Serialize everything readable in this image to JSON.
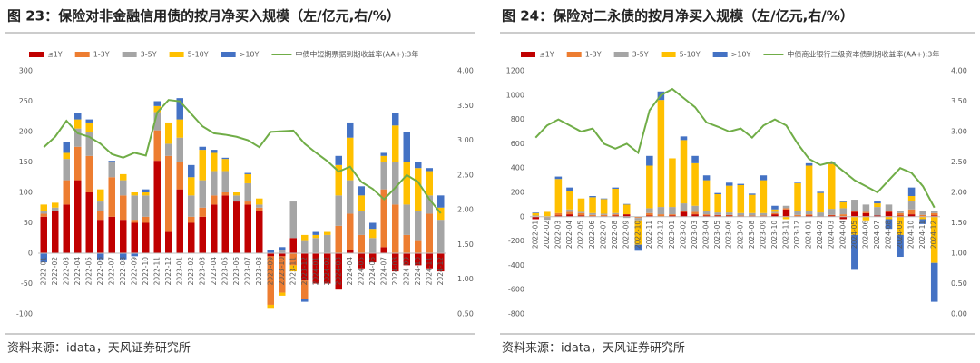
{
  "chart_data": [
    {
      "type": "bar",
      "stacked": true,
      "title": "图 23：保险对非金融信用债的按月净买入规模（左/亿元,右/%）",
      "note": "资料来源：idata，天风证券研究所",
      "categories": [
        "2022-01",
        "2022-02",
        "2022-03",
        "2022-04",
        "2022-05",
        "2022-06",
        "2022-07",
        "2022-08",
        "2022-09",
        "2022-10",
        "2022-11",
        "2022-12",
        "2023-01",
        "2023-02",
        "2023-03",
        "2023-04",
        "2023-05",
        "2023-06",
        "2023-07",
        "2023-08",
        "2023-09",
        "2023-10",
        "2023-11",
        "2023-12",
        "2024-01",
        "2024-02",
        "2024-03",
        "2024-04",
        "2024-05",
        "2024-06",
        "2024-07",
        "2024-08",
        "2024-09",
        "2024-10",
        "2024-11",
        "2024-12"
      ],
      "series": [
        {
          "name": "≤1Y",
          "color": "#c00000",
          "values": [
            60,
            70,
            80,
            120,
            100,
            55,
            60,
            55,
            50,
            50,
            152,
            35,
            105,
            50,
            60,
            80,
            95,
            85,
            80,
            70,
            -5,
            -5,
            25,
            -45,
            -50,
            -50,
            -60,
            5,
            -25,
            -15,
            10,
            -30,
            -20,
            -20,
            -25,
            -30
          ]
        },
        {
          "name": "1-3Y",
          "color": "#ed7d31",
          "values": [
            5,
            0,
            40,
            55,
            60,
            15,
            65,
            40,
            5,
            10,
            50,
            125,
            45,
            10,
            15,
            15,
            5,
            0,
            5,
            5,
            -80,
            -60,
            -20,
            -30,
            0,
            0,
            45,
            60,
            30,
            0,
            95,
            80,
            30,
            20,
            65,
            0
          ]
        },
        {
          "name": "3-5Y",
          "color": "#a5a5a5",
          "values": [
            5,
            5,
            35,
            30,
            40,
            15,
            25,
            25,
            40,
            35,
            30,
            20,
            40,
            35,
            45,
            40,
            35,
            10,
            30,
            5,
            0,
            5,
            60,
            20,
            25,
            30,
            50,
            55,
            40,
            25,
            45,
            70,
            50,
            50,
            30,
            55
          ]
        },
        {
          "name": "5-10Y",
          "color": "#ffc000",
          "values": [
            10,
            8,
            10,
            15,
            15,
            20,
            0,
            10,
            5,
            5,
            10,
            35,
            30,
            30,
            50,
            30,
            20,
            5,
            15,
            10,
            -5,
            -5,
            -10,
            10,
            5,
            5,
            50,
            70,
            25,
            15,
            10,
            60,
            70,
            70,
            40,
            20
          ]
        },
        {
          "name": ">10Y",
          "color": "#4472c4",
          "values": [
            -15,
            0,
            18,
            10,
            5,
            -10,
            2,
            -10,
            -5,
            5,
            8,
            0,
            35,
            20,
            5,
            5,
            2,
            0,
            2,
            0,
            5,
            5,
            0,
            -5,
            5,
            0,
            15,
            25,
            15,
            10,
            5,
            20,
            50,
            10,
            5,
            20
          ]
        },
        {
          "name": "中债中短期票据到期收益率(AA+):3年",
          "type": "line",
          "axis": "y2",
          "color": "#70ad47",
          "values": [
            2.9,
            3.05,
            3.28,
            3.1,
            3.05,
            2.95,
            2.8,
            2.75,
            2.82,
            2.78,
            3.4,
            3.58,
            3.56,
            3.38,
            3.2,
            3.1,
            3.08,
            3.05,
            3.0,
            2.9,
            3.12,
            3.13,
            3.14,
            2.95,
            2.82,
            2.7,
            2.55,
            2.62,
            2.4,
            2.3,
            2.15,
            2.32,
            2.5,
            2.4,
            2.15,
            1.95
          ]
        }
      ],
      "ylim": [
        -100,
        300
      ],
      "yticks": [
        -100,
        -50,
        0,
        50,
        100,
        150,
        200,
        250,
        300
      ],
      "y2lim": [
        0.5,
        4
      ],
      "y2ticks": [
        {
          "value": 0.5,
          "label": "0.50"
        },
        {
          "value": 1,
          "label": "1.00"
        },
        {
          "value": 1.5,
          "label": "1.50"
        },
        {
          "value": 2,
          "label": "2.00"
        },
        {
          "value": 2.5,
          "label": "2.50"
        },
        {
          "value": 3,
          "label": "3.00"
        },
        {
          "value": 3.5,
          "label": "3.50"
        },
        {
          "value": 4,
          "label": "4.00"
        }
      ],
      "legend": "top"
    },
    {
      "type": "bar",
      "stacked": true,
      "title": "图 24：保险对二永债的按月净买入规模（左/亿元,右/%）",
      "note": "资料来源：idata，天风证券研究所",
      "categories": [
        "2022-01",
        "2022-02",
        "2022-03",
        "2022-04",
        "2022-05",
        "2022-06",
        "2022-07",
        "2022-08",
        "2022-09",
        "2022-10",
        "2022-11",
        "2022-12",
        "2023-01",
        "2023-02",
        "2023-03",
        "2023-04",
        "2023-05",
        "2023-06",
        "2023-07",
        "2023-08",
        "2023-09",
        "2023-10",
        "2023-11",
        "2023-12",
        "2024-01",
        "2024-02",
        "2024-03",
        "2024-04",
        "2024-05",
        "2024-06",
        "2024-07",
        "2024-08",
        "2024-09",
        "2024-10",
        "2024-11",
        "2024-12"
      ],
      "series": [
        {
          "name": "≤1Y",
          "color": "#c00000",
          "values": [
            -20,
            0,
            10,
            20,
            10,
            5,
            5,
            10,
            20,
            0,
            10,
            0,
            10,
            40,
            20,
            10,
            10,
            10,
            5,
            5,
            5,
            20,
            60,
            5,
            10,
            5,
            10,
            -20,
            40,
            30,
            10,
            40,
            10,
            20,
            5,
            10
          ]
        },
        {
          "name": "1-3Y",
          "color": "#ed7d31",
          "values": [
            5,
            -5,
            20,
            20,
            20,
            10,
            10,
            10,
            0,
            -10,
            20,
            20,
            10,
            10,
            20,
            10,
            5,
            5,
            5,
            5,
            5,
            10,
            10,
            10,
            10,
            0,
            5,
            20,
            10,
            10,
            0,
            10,
            20,
            40,
            10,
            20
          ]
        },
        {
          "name": "3-5Y",
          "color": "#a5a5a5",
          "values": [
            5,
            -20,
            0,
            20,
            10,
            15,
            10,
            10,
            -10,
            -20,
            40,
            60,
            60,
            60,
            50,
            30,
            20,
            20,
            20,
            20,
            20,
            10,
            20,
            30,
            30,
            30,
            50,
            50,
            90,
            60,
            70,
            50,
            20,
            70,
            30,
            20
          ]
        },
        {
          "name": "5-10Y",
          "color": "#ffc000",
          "values": [
            20,
            40,
            280,
            150,
            110,
            130,
            120,
            200,
            80,
            -200,
            350,
            880,
            400,
            520,
            350,
            250,
            150,
            220,
            230,
            150,
            270,
            20,
            -20,
            230,
            370,
            160,
            370,
            50,
            -150,
            -30,
            30,
            -20,
            -150,
            40,
            -20,
            -380
          ]
        },
        {
          "name": ">10Y",
          "color": "#4472c4",
          "values": [
            5,
            0,
            20,
            30,
            0,
            10,
            5,
            10,
            5,
            -50,
            80,
            70,
            0,
            30,
            60,
            40,
            10,
            25,
            10,
            10,
            40,
            30,
            0,
            5,
            20,
            10,
            10,
            10,
            -280,
            0,
            15,
            -80,
            -180,
            70,
            -40,
            -320
          ]
        },
        {
          "name": "中债商业银行二级资本债到期收益率(AA+):3年",
          "type": "line",
          "axis": "y2",
          "color": "#70ad47",
          "values": [
            2.9,
            3.1,
            3.2,
            3.1,
            3.0,
            3.05,
            2.8,
            2.72,
            2.8,
            2.65,
            3.35,
            3.6,
            3.7,
            3.55,
            3.4,
            3.15,
            3.08,
            3.0,
            3.05,
            2.9,
            3.1,
            3.2,
            3.1,
            2.8,
            2.55,
            2.45,
            2.5,
            2.35,
            2.2,
            2.1,
            2.0,
            2.2,
            2.4,
            2.32,
            2.1,
            1.75
          ]
        }
      ],
      "ylim": [
        -800,
        1200
      ],
      "yticks": [
        -800,
        -600,
        -400,
        -200,
        0,
        200,
        400,
        600,
        800,
        1000,
        1200
      ],
      "y2lim": [
        0,
        4
      ],
      "y2ticks": [
        {
          "value": 0,
          "label": "0.00"
        },
        {
          "value": 0.5,
          "label": "0.50"
        },
        {
          "value": 1,
          "label": "1.00"
        },
        {
          "value": 1.5,
          "label": "1.50"
        },
        {
          "value": 2,
          "label": "2.00"
        },
        {
          "value": 2.5,
          "label": "2.50"
        },
        {
          "value": 3,
          "label": "3.00"
        },
        {
          "value": 3.5,
          "label": "3.50"
        },
        {
          "value": 4,
          "label": "4.00"
        }
      ],
      "legend": "top"
    }
  ]
}
